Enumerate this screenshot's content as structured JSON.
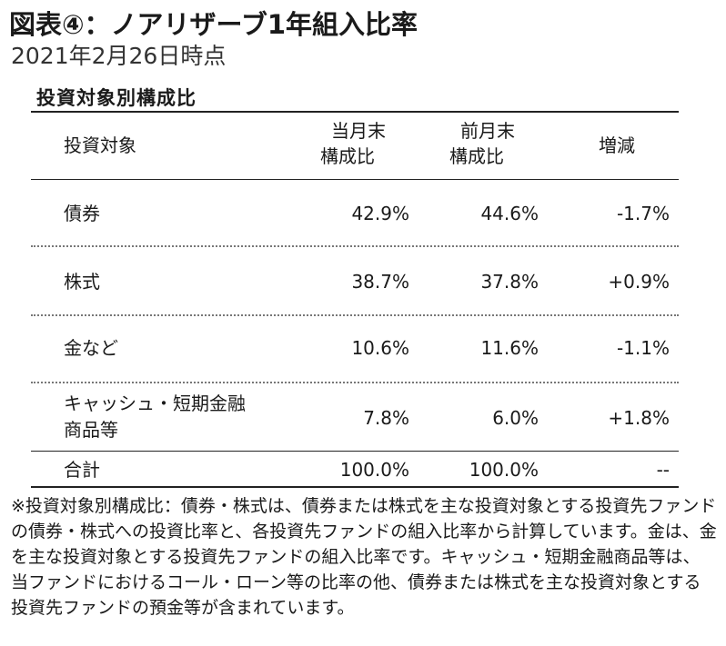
{
  "title": "図表④：ノアリザーブ1年組入比率",
  "subtitle": "2021年2月26日時点",
  "section_heading": "投資対象別構成比",
  "table": {
    "headers": {
      "target": "投資対象",
      "current_line1": "当月末",
      "current_line2": "構成比",
      "previous_line1": "前月末",
      "previous_line2": "構成比",
      "change": "増減"
    },
    "rows": [
      {
        "label_line1": "債券",
        "label_line2": "",
        "current": "42.9%",
        "previous": "44.6%",
        "change": "-1.7%"
      },
      {
        "label_line1": "株式",
        "label_line2": "",
        "current": "38.7%",
        "previous": "37.8%",
        "change": "+0.9%"
      },
      {
        "label_line1": "金など",
        "label_line2": "",
        "current": "10.6%",
        "previous": "11.6%",
        "change": "-1.1%"
      },
      {
        "label_line1": "キャッシュ・短期金融",
        "label_line2": "商品等",
        "current": "7.8%",
        "previous": "6.0%",
        "change": "+1.8%"
      }
    ],
    "total": {
      "label": "合計",
      "current": "100.0%",
      "previous": "100.0%",
      "change": "--"
    }
  },
  "footnote": "※投資対象別構成比：債券・株式は、債券または株式を主な投資対象とする投資先ファンドの債券・株式への投資比率と、各投資先ファンドの組入比率から計算しています。金は、金を主な投資対象とする投資先ファンドの組入比率です。キャッシュ・短期金融商品等は、当ファンドにおけるコール・ローン等の比率の他、債券または株式を主な投資対象とする投資先ファンドの預金等が含まれています。"
}
